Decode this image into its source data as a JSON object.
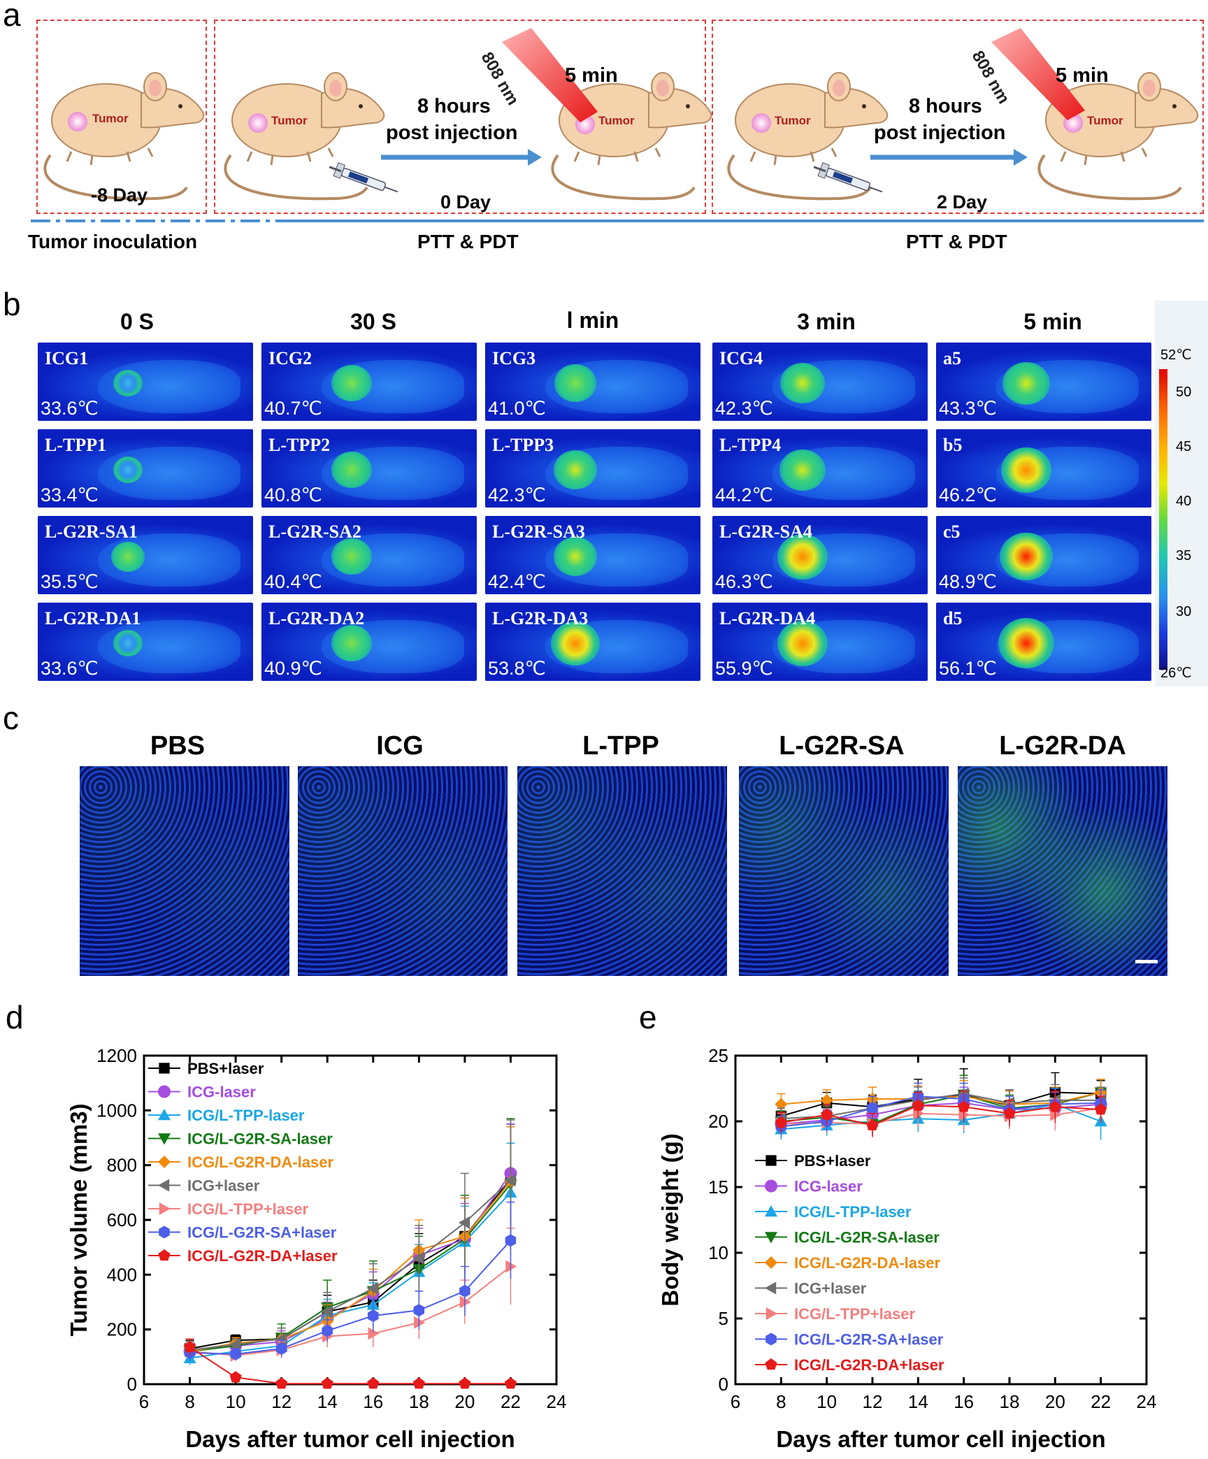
{
  "panel_labels": {
    "a": "a",
    "b": "b",
    "c": "c",
    "d": "d",
    "e": "e"
  },
  "panel_a": {
    "tumor_label": "Tumor",
    "day_minus8": "-8 Day",
    "day_0": "0 Day",
    "day_2": "2 Day",
    "post_injection_1": "8 hours",
    "post_injection_2": "post injection",
    "laser": "808 nm",
    "duration": "5 min",
    "tumor_inoculation": "Tumor inoculation",
    "ptt_pdt": "PTT & PDT"
  },
  "panel_b": {
    "columns": [
      "0 S",
      "30 S",
      "l min",
      "3 min",
      "5 min"
    ],
    "colorbar": {
      "max": "52℃",
      "min": "26℃",
      "ticks": [
        "50",
        "45",
        "40",
        "35",
        "30"
      ]
    },
    "rows": [
      {
        "names": [
          "ICG1",
          "ICG2",
          "ICG3",
          "ICG4",
          "a5"
        ],
        "temps": [
          "33.6℃",
          "40.7℃",
          "41.0℃",
          "42.3℃",
          "43.3℃"
        ],
        "heat": [
          0.05,
          0.45,
          0.5,
          0.6,
          0.7
        ]
      },
      {
        "names": [
          "L-TPP1",
          "L-TPP2",
          "L-TPP3",
          "L-TPP4",
          "b5"
        ],
        "temps": [
          "33.4℃",
          "40.8℃",
          "42.3℃",
          "44.2℃",
          "46.2℃"
        ],
        "heat": [
          0.05,
          0.45,
          0.55,
          0.65,
          0.8
        ]
      },
      {
        "names": [
          "L-G2R-SA1",
          "L-G2R-SA2",
          "L-G2R-SA3",
          "L-G2R-SA4",
          "c5"
        ],
        "temps": [
          "35.5℃",
          "40.4℃",
          "42.4℃",
          "46.3℃",
          "48.9℃"
        ],
        "heat": [
          0.2,
          0.45,
          0.55,
          0.8,
          0.9
        ]
      },
      {
        "names": [
          "L-G2R-DA1",
          "L-G2R-DA2",
          "L-G2R-DA3",
          "L-G2R-DA4",
          "d5"
        ],
        "temps": [
          "33.6℃",
          "40.9℃",
          "53.8℃",
          "55.9℃",
          "56.1℃"
        ],
        "heat": [
          0.05,
          0.45,
          0.75,
          0.8,
          1.0
        ]
      }
    ]
  },
  "panel_c": {
    "labels": [
      "PBS",
      "ICG",
      "L-TPP",
      "L-G2R-SA",
      "L-G2R-DA"
    ],
    "green_level": [
      0.02,
      0.06,
      0.12,
      0.3,
      0.7
    ]
  },
  "colors": {
    "PBS+laser": "#000000",
    "ICG-laser": "#a64de0",
    "ICG/L-TPP-laser": "#1aa7e6",
    "ICG/L-G2R-SA-laser": "#137a13",
    "ICG/L-G2R-DA-laser": "#f08a0c",
    "ICG+laser": "#6e6e6e",
    "ICG/L-TPP+laser": "#f47f7f",
    "ICG/L-G2R-SA+laser": "#4d5ee8",
    "ICG/L-G2R-DA+laser": "#e81919"
  },
  "chart_data": [
    {
      "type": "line",
      "title": "",
      "xlabel": "Days after tumor cell injection",
      "ylabel": "Tumor volume (mm3)",
      "xlim": [
        6,
        24
      ],
      "ylim": [
        0,
        1200
      ],
      "xticks": [
        "6",
        "8",
        "10",
        "12",
        "14",
        "16",
        "18",
        "20",
        "22",
        "24"
      ],
      "yticks": [
        "0",
        "200",
        "400",
        "600",
        "800",
        "1000",
        "1200"
      ],
      "x": [
        8,
        10,
        12,
        14,
        16,
        18,
        20,
        22
      ],
      "legend": "top-left",
      "series": [
        {
          "name": "PBS+laser",
          "marker": "square",
          "values": [
            130,
            160,
            165,
            265,
            300,
            440,
            540,
            750
          ],
          "err": [
            30,
            20,
            40,
            60,
            80,
            110,
            140,
            200
          ]
        },
        {
          "name": "ICG-laser",
          "marker": "circle",
          "values": [
            120,
            140,
            155,
            240,
            330,
            470,
            530,
            770
          ],
          "err": [
            30,
            20,
            40,
            60,
            80,
            100,
            130,
            180
          ]
        },
        {
          "name": "ICG/L-TPP-laser",
          "marker": "triangle-up",
          "values": [
            95,
            120,
            140,
            250,
            290,
            410,
            520,
            700
          ],
          "err": [
            25,
            20,
            40,
            60,
            80,
            100,
            130,
            180
          ]
        },
        {
          "name": "ICG/L-G2R-SA-laser",
          "marker": "triangle-down",
          "values": [
            120,
            140,
            170,
            280,
            340,
            420,
            530,
            730
          ],
          "err": [
            30,
            20,
            50,
            100,
            110,
            120,
            160,
            240
          ]
        },
        {
          "name": "ICG/L-G2R-DA-laser",
          "marker": "diamond",
          "values": [
            120,
            150,
            165,
            230,
            340,
            490,
            540,
            740
          ],
          "err": [
            30,
            20,
            40,
            60,
            80,
            110,
            140,
            200
          ]
        },
        {
          "name": "ICG+laser",
          "marker": "triangle-left",
          "values": [
            125,
            145,
            165,
            265,
            350,
            460,
            590,
            745
          ],
          "err": [
            30,
            20,
            40,
            70,
            90,
            120,
            180,
            220
          ]
        },
        {
          "name": "ICG/L-TPP+laser",
          "marker": "triangle-right",
          "values": [
            120,
            105,
            125,
            175,
            185,
            225,
            300,
            430
          ],
          "err": [
            30,
            20,
            30,
            40,
            50,
            60,
            80,
            140
          ]
        },
        {
          "name": "ICG/L-G2R-SA+laser",
          "marker": "hexagon",
          "values": [
            115,
            110,
            130,
            195,
            250,
            270,
            340,
            525
          ],
          "err": [
            30,
            20,
            30,
            40,
            60,
            70,
            90,
            140
          ]
        },
        {
          "name": "ICG/L-G2R-DA+laser",
          "marker": "pentagon",
          "values": [
            135,
            25,
            2,
            2,
            2,
            2,
            2,
            2
          ],
          "err": [
            30,
            10,
            2,
            2,
            2,
            2,
            2,
            2
          ]
        }
      ]
    },
    {
      "type": "line",
      "title": "",
      "xlabel": "Days after tumor cell injection",
      "ylabel": "Body weight (g)",
      "xlim": [
        6,
        24
      ],
      "ylim": [
        0,
        25
      ],
      "xticks": [
        "6",
        "8",
        "10",
        "12",
        "14",
        "16",
        "18",
        "20",
        "22",
        "24"
      ],
      "yticks": [
        "0",
        "5",
        "10",
        "15",
        "20",
        "25"
      ],
      "x": [
        8,
        10,
        12,
        14,
        16,
        18,
        20,
        22
      ],
      "legend": "center-left",
      "series": [
        {
          "name": "PBS+laser",
          "marker": "square",
          "values": [
            20.4,
            21.4,
            21.1,
            21.7,
            22.0,
            21.2,
            22.2,
            22.1
          ],
          "err": [
            0.8,
            0.8,
            0.9,
            1.5,
            2.0,
            1.2,
            1.5,
            1.0
          ]
        },
        {
          "name": "ICG-laser",
          "marker": "circle",
          "values": [
            19.8,
            20.1,
            20.5,
            21.2,
            21.4,
            20.9,
            21.0,
            21.3
          ],
          "err": [
            0.8,
            0.8,
            0.9,
            1.0,
            1.2,
            1.0,
            1.2,
            1.0
          ]
        },
        {
          "name": "ICG/L-TPP-laser",
          "marker": "triangle-up",
          "values": [
            19.4,
            19.7,
            20.0,
            20.2,
            20.1,
            20.6,
            21.3,
            20.0
          ],
          "err": [
            0.8,
            0.8,
            0.9,
            1.0,
            1.0,
            1.0,
            1.2,
            1.4
          ]
        },
        {
          "name": "ICG/L-G2R-SA-laser",
          "marker": "triangle-down",
          "values": [
            20.0,
            20.3,
            19.8,
            21.3,
            22.0,
            21.0,
            21.3,
            22.2
          ],
          "err": [
            0.8,
            0.8,
            0.9,
            1.0,
            1.5,
            1.0,
            1.2,
            1.0
          ]
        },
        {
          "name": "ICG/L-G2R-DA-laser",
          "marker": "diamond",
          "values": [
            21.3,
            21.6,
            21.7,
            21.7,
            21.9,
            21.3,
            21.4,
            22.2
          ],
          "err": [
            0.8,
            0.8,
            0.9,
            1.0,
            1.2,
            1.0,
            1.2,
            1.0
          ]
        },
        {
          "name": "ICG+laser",
          "marker": "triangle-left",
          "values": [
            20.2,
            20.4,
            21.0,
            21.6,
            22.1,
            21.4,
            21.6,
            21.6
          ],
          "err": [
            0.8,
            0.8,
            0.9,
            1.0,
            1.2,
            1.0,
            1.2,
            1.0
          ]
        },
        {
          "name": "ICG/L-TPP+laser",
          "marker": "triangle-right",
          "values": [
            19.8,
            19.9,
            19.8,
            20.6,
            20.5,
            20.4,
            20.5,
            21.0
          ],
          "err": [
            0.8,
            0.8,
            0.9,
            1.0,
            1.2,
            1.0,
            1.2,
            1.0
          ]
        },
        {
          "name": "ICG/L-G2R-SA+laser",
          "marker": "hexagon",
          "values": [
            19.6,
            20.0,
            21.0,
            21.9,
            21.7,
            20.9,
            21.3,
            21.4
          ],
          "err": [
            0.8,
            0.8,
            0.9,
            1.0,
            1.2,
            1.0,
            1.2,
            1.0
          ]
        },
        {
          "name": "ICG/L-G2R-DA+laser",
          "marker": "pentagon",
          "values": [
            19.9,
            20.5,
            19.7,
            21.2,
            21.1,
            20.6,
            21.1,
            20.9
          ],
          "err": [
            0.8,
            0.8,
            0.9,
            1.0,
            1.2,
            1.0,
            1.2,
            1.0
          ]
        }
      ]
    }
  ]
}
